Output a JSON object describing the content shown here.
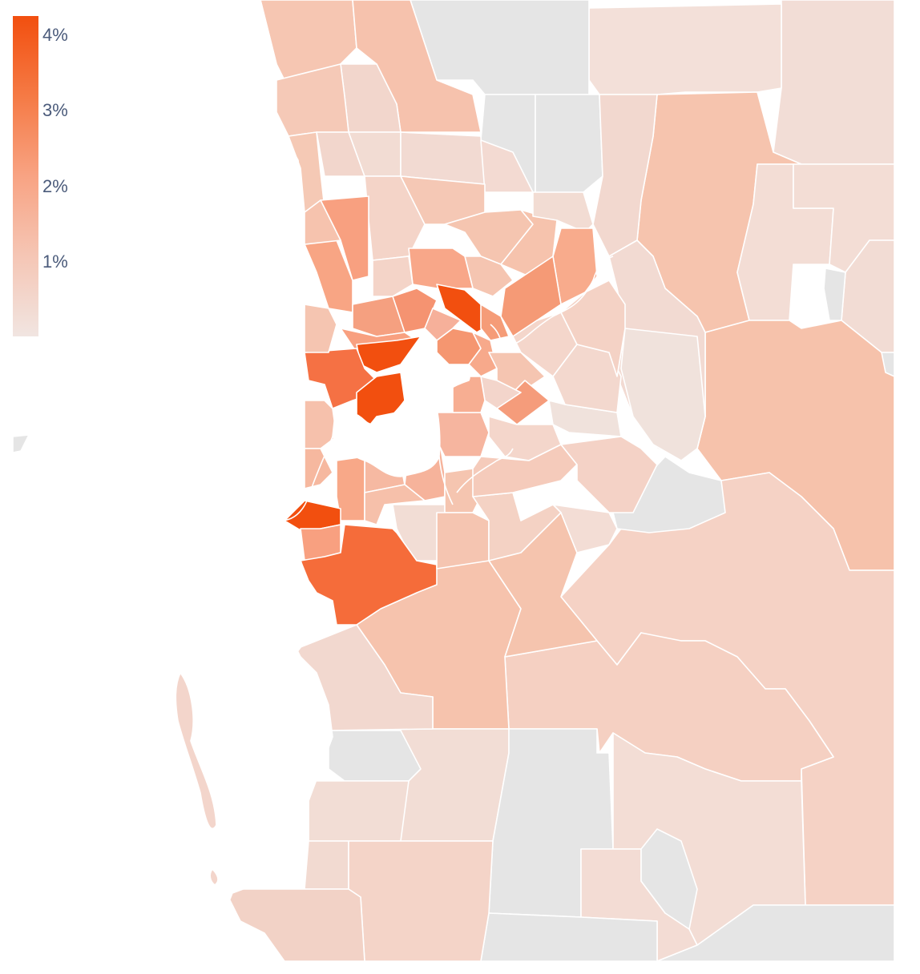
{
  "legend": {
    "ticks": [
      {
        "label": "4%",
        "value": 4
      },
      {
        "label": "3%",
        "value": 3
      },
      {
        "label": "2%",
        "value": 2
      },
      {
        "label": "1%",
        "value": 1
      }
    ],
    "color_low": "#f1e5e1",
    "color_high": "#f24f0f"
  },
  "colors": {
    "no_data": "#e5e5e5",
    "water": "#ffffff",
    "border": "#ffffff"
  }
}
